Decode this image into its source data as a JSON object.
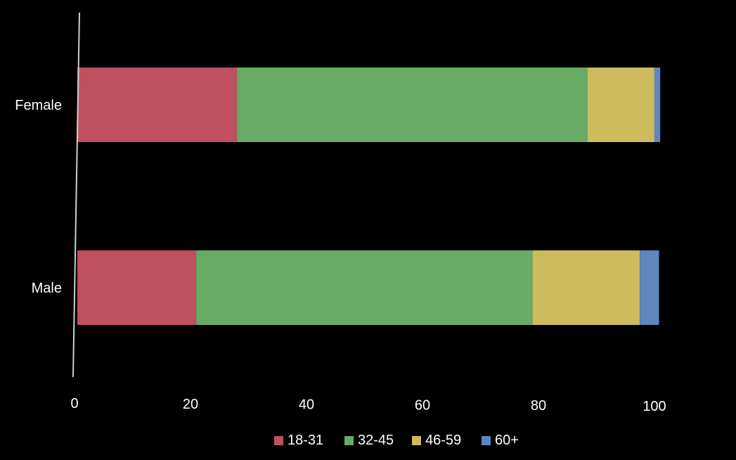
{
  "chart_data": {
    "type": "bar",
    "orientation": "horizontal",
    "stacked": true,
    "categories": [
      "Female",
      "Male"
    ],
    "series": [
      {
        "name": "18-31",
        "color": "#c0505f",
        "values": [
          27.5,
          20.5
        ]
      },
      {
        "name": "32-45",
        "color": "#67ab64",
        "values": [
          60.5,
          58.0
        ]
      },
      {
        "name": "46-59",
        "color": "#cdbb5d",
        "values": [
          11.5,
          18.5
        ]
      },
      {
        "name": "60+",
        "color": "#5e86bf",
        "values": [
          1.0,
          3.3
        ]
      }
    ],
    "xticks": [
      0,
      20,
      40,
      60,
      80,
      100
    ],
    "xlim": [
      0,
      100
    ],
    "grid": false,
    "legend_position": "bottom"
  }
}
